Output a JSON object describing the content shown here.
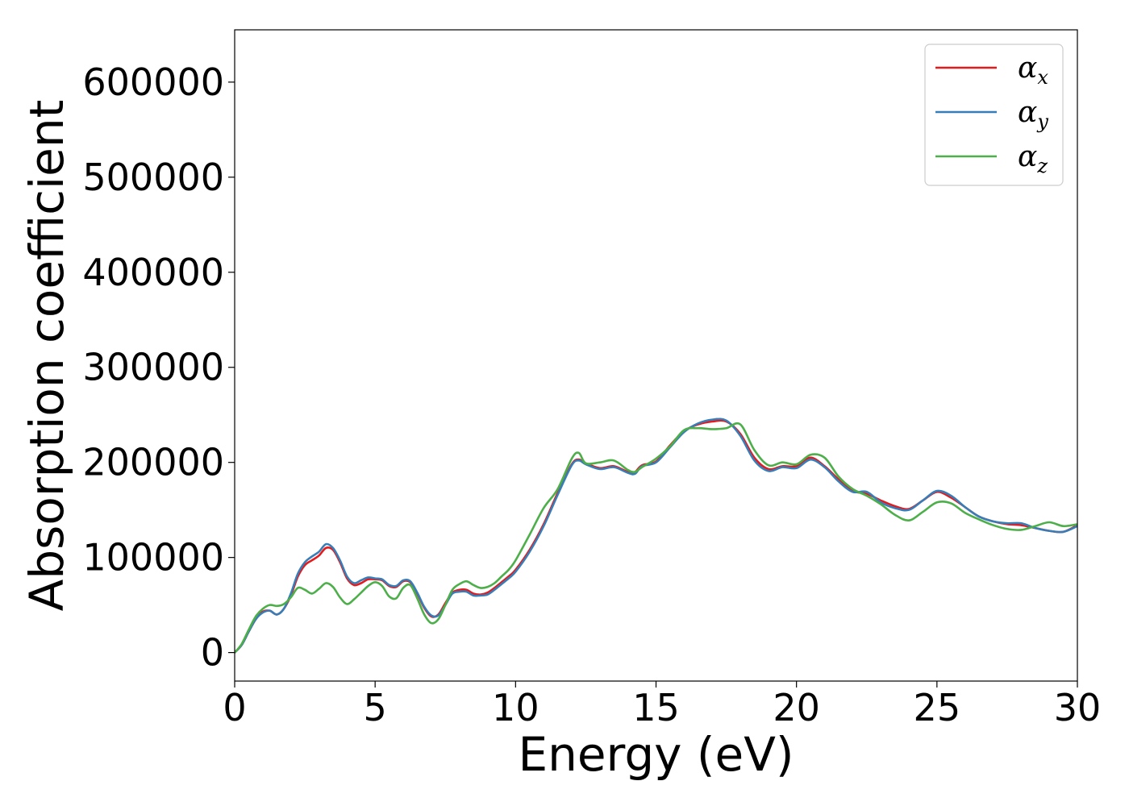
{
  "chart_data": {
    "type": "line",
    "title": "",
    "xlabel": "Energy (eV)",
    "ylabel": "Absorption coefficient",
    "xlim": [
      0,
      30
    ],
    "ylim": [
      -30000,
      655000
    ],
    "xticks": [
      0,
      5,
      10,
      15,
      20,
      25,
      30
    ],
    "yticks": [
      0,
      100000,
      200000,
      300000,
      400000,
      500000,
      600000
    ],
    "grid": false,
    "legend_position": "top-right",
    "x": [
      0,
      0.25,
      0.5,
      0.75,
      1,
      1.25,
      1.5,
      1.75,
      2,
      2.25,
      2.5,
      2.75,
      3,
      3.25,
      3.5,
      3.75,
      4,
      4.25,
      4.5,
      4.75,
      5,
      5.25,
      5.5,
      5.75,
      6,
      6.25,
      6.5,
      6.75,
      7,
      7.25,
      7.5,
      7.75,
      8,
      8.25,
      8.5,
      8.75,
      9,
      9.25,
      9.5,
      9.75,
      10,
      10.5,
      11,
      11.5,
      12,
      12.25,
      12.5,
      13,
      13.5,
      14,
      14.25,
      14.5,
      15,
      15.5,
      16,
      16.5,
      17,
      17.5,
      18,
      18.5,
      19,
      19.5,
      20,
      20.5,
      21,
      21.5,
      22,
      22.5,
      23,
      23.5,
      24,
      24.5,
      25,
      25.5,
      26,
      26.5,
      27,
      27.5,
      28,
      28.5,
      29,
      29.5,
      30
    ],
    "series": [
      {
        "name": "α",
        "subscript": "x",
        "color": "#e41a1c",
        "values": [
          0,
          8000,
          22000,
          35000,
          43000,
          44000,
          40000,
          46000,
          60000,
          80000,
          92000,
          97000,
          102000,
          110000,
          108000,
          95000,
          78000,
          71000,
          73000,
          77000,
          77000,
          76000,
          70000,
          69000,
          75000,
          74000,
          62000,
          47000,
          38000,
          40000,
          52000,
          63000,
          66000,
          66000,
          62000,
          61000,
          63000,
          68000,
          74000,
          80000,
          87000,
          108000,
          135000,
          168000,
          198000,
          203000,
          199000,
          194000,
          196000,
          190000,
          190000,
          197000,
          201000,
          218000,
          233000,
          240000,
          243000,
          243000,
          230000,
          205000,
          193000,
          196000,
          196000,
          205000,
          196000,
          182000,
          170000,
          167000,
          160000,
          154000,
          151000,
          160000,
          169000,
          163000,
          153000,
          143000,
          138000,
          135000,
          134000,
          131000,
          128000,
          127000,
          134000
        ]
      },
      {
        "name": "α",
        "subscript": "y",
        "color": "#377eb8",
        "values": [
          0,
          8000,
          22000,
          35000,
          42000,
          44000,
          40000,
          46000,
          62000,
          83000,
          95000,
          101000,
          106000,
          114000,
          110000,
          97000,
          80000,
          73000,
          76000,
          79000,
          78000,
          77000,
          71000,
          70000,
          76000,
          75000,
          63000,
          48000,
          39000,
          39000,
          50000,
          62000,
          64000,
          64000,
          60000,
          60000,
          61000,
          66000,
          72000,
          78000,
          85000,
          106000,
          133000,
          166000,
          197000,
          202000,
          198000,
          193000,
          195000,
          189000,
          188000,
          196000,
          200000,
          216000,
          232000,
          241000,
          245000,
          244000,
          228000,
          202000,
          191000,
          195000,
          194000,
          203000,
          195000,
          180000,
          169000,
          169000,
          158000,
          152000,
          150000,
          160000,
          170000,
          165000,
          153000,
          143000,
          138000,
          136000,
          136000,
          131000,
          128000,
          127000,
          133000
        ]
      },
      {
        "name": "α",
        "subscript": "z",
        "color": "#4daf4a",
        "values": [
          0,
          9000,
          24000,
          38000,
          46000,
          50000,
          49000,
          51000,
          58000,
          68000,
          66000,
          62000,
          67000,
          73000,
          69000,
          58000,
          51000,
          56000,
          63000,
          70000,
          74000,
          70000,
          59000,
          57000,
          68000,
          71000,
          57000,
          40000,
          31000,
          35000,
          50000,
          66000,
          72000,
          75000,
          71000,
          68000,
          69000,
          73000,
          80000,
          87000,
          97000,
          124000,
          152000,
          172000,
          204000,
          210000,
          199000,
          200000,
          202000,
          192000,
          190000,
          195000,
          204000,
          217000,
          234000,
          236000,
          235000,
          236000,
          240000,
          213000,
          197000,
          200000,
          198000,
          208000,
          205000,
          185000,
          172000,
          165000,
          156000,
          145000,
          139000,
          148000,
          158000,
          157000,
          147000,
          140000,
          134000,
          130000,
          129000,
          133000,
          137000,
          133000,
          135000
        ]
      }
    ]
  }
}
